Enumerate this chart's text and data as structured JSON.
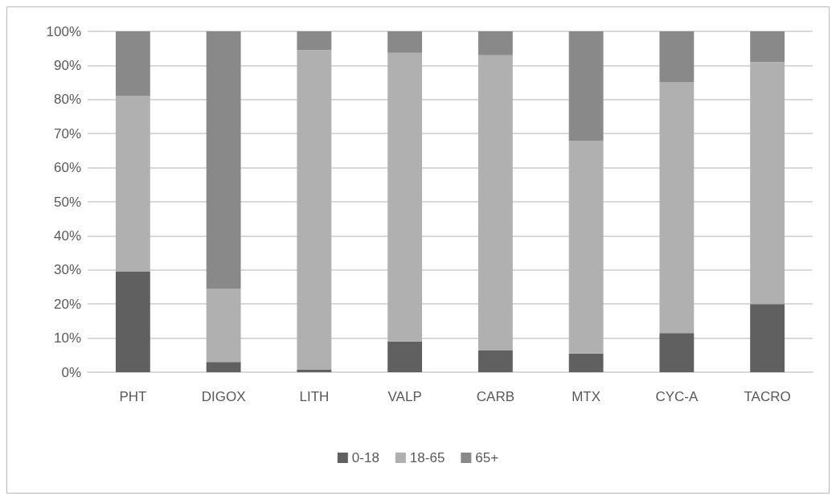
{
  "chart_data": {
    "type": "bar",
    "stacked": true,
    "categories": [
      "PHT",
      "DIGOX",
      "LITH",
      "VALP",
      "CARB",
      "MTX",
      "CYC-A",
      "TACRO"
    ],
    "series": [
      {
        "name": "0-18",
        "color": "#606060",
        "values": [
          29.5,
          3,
          0.7,
          9,
          6.5,
          5.5,
          11.5,
          20
        ]
      },
      {
        "name": "18-65",
        "color": "#b0b0b0",
        "values": [
          51.5,
          21.5,
          93.8,
          84.7,
          86.5,
          62.3,
          73.5,
          71
        ]
      },
      {
        "name": "65+",
        "color": "#898989",
        "values": [
          19,
          75.5,
          5.5,
          6.3,
          7,
          32.2,
          15,
          9
        ]
      }
    ],
    "ylim": [
      0,
      100
    ],
    "yticks": [
      {
        "value": 0,
        "label": "0%"
      },
      {
        "value": 10,
        "label": "10%"
      },
      {
        "value": 20,
        "label": "20%"
      },
      {
        "value": 30,
        "label": "30%"
      },
      {
        "value": 40,
        "label": "40%"
      },
      {
        "value": 50,
        "label": "50%"
      },
      {
        "value": 60,
        "label": "60%"
      },
      {
        "value": 70,
        "label": "70%"
      },
      {
        "value": 80,
        "label": "80%"
      },
      {
        "value": 90,
        "label": "90%"
      },
      {
        "value": 100,
        "label": "100%"
      }
    ],
    "grid": "y",
    "legend": "bottom"
  }
}
